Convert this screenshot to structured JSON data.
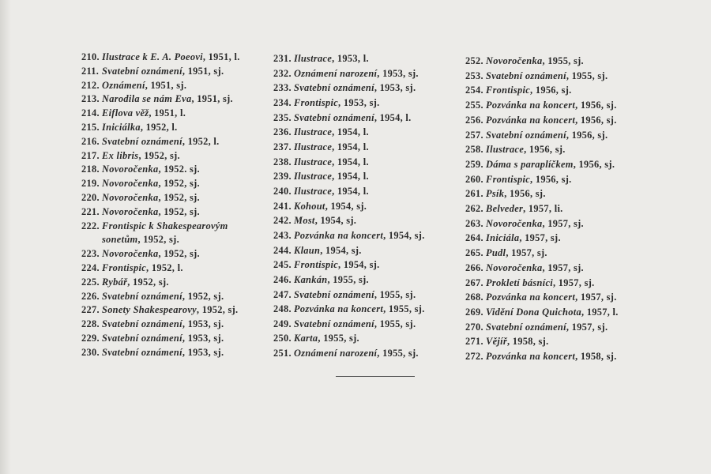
{
  "columns": [
    [
      {
        "num": "210.",
        "title": "Ilustrace k E. A. Poeovi",
        "rest": ", 1951, l."
      },
      {
        "num": "211.",
        "title": "Svatební oznámení",
        "rest": ", 1951, sj."
      },
      {
        "num": "212.",
        "title": "Oznámení",
        "rest": ", 1951, sj."
      },
      {
        "num": "213.",
        "title": "Narodila se nám Eva",
        "rest": ", 1951, sj."
      },
      {
        "num": "214.",
        "title": "Eiflova věž",
        "rest": ", 1951, l."
      },
      {
        "num": "215.",
        "title": "Iniciálka",
        "rest": ", 1952, l."
      },
      {
        "num": "216.",
        "title": "Svatební oznámení",
        "rest": ", 1952, l."
      },
      {
        "num": "217.",
        "title": "Ex libris",
        "rest": ", 1952, sj."
      },
      {
        "num": "218.",
        "title": "Novoročenka",
        "rest": ", 1952. sj."
      },
      {
        "num": "219.",
        "title": "Novoročenka",
        "rest": ", 1952, sj."
      },
      {
        "num": "220.",
        "title": "Novoročenka",
        "rest": ", 1952, sj."
      },
      {
        "num": "221.",
        "title": "Novoročenka",
        "rest": ", 1952, sj."
      },
      {
        "num": "222.",
        "title": "Frontispic k Shakespearovým sonetům",
        "rest": ", 1952, sj."
      },
      {
        "num": "223.",
        "title": "Novoročenka",
        "rest": ", 1952, sj."
      },
      {
        "num": "224.",
        "title": "Frontispic",
        "rest": ", 1952, l."
      },
      {
        "num": "225.",
        "title": "Rybář",
        "rest": ", 1952, sj."
      },
      {
        "num": "226.",
        "title": "Svatební oznámení",
        "rest": ", 1952, sj."
      },
      {
        "num": "227.",
        "title": "Sonety Shakespearovy",
        "rest": ", 1952, sj."
      },
      {
        "num": "228.",
        "title": "Svatební oznámení",
        "rest": ", 1953, sj."
      },
      {
        "num": "229.",
        "title": "Svatební oznámení",
        "rest": ", 1953, sj."
      },
      {
        "num": "230.",
        "title": "Svatební oznámení",
        "rest": ", 1953, sj."
      }
    ],
    [
      {
        "num": "231.",
        "title": "Ilustrace",
        "rest": ", 1953, l."
      },
      {
        "num": "232.",
        "title": "Oznámení narození",
        "rest": ", 1953, sj."
      },
      {
        "num": "233.",
        "title": "Svatební oznámení",
        "rest": ", 1953, sj."
      },
      {
        "num": "234.",
        "title": "Frontispic",
        "rest": ", 1953, sj."
      },
      {
        "num": "235.",
        "title": "Svatební oznámení",
        "rest": ", 1954, l."
      },
      {
        "num": "236.",
        "title": "Ilustrace",
        "rest": ", 1954, l."
      },
      {
        "num": "237.",
        "title": "Ilustrace",
        "rest": ", 1954, l."
      },
      {
        "num": "238.",
        "title": "Ilustrace",
        "rest": ", 1954, l."
      },
      {
        "num": "239.",
        "title": "Ilustrace",
        "rest": ", 1954, l."
      },
      {
        "num": "240.",
        "title": "Ilustrace",
        "rest": ", 1954, l."
      },
      {
        "num": "241.",
        "title": "Kohout",
        "rest": ", 1954, sj."
      },
      {
        "num": "242.",
        "title": "Most",
        "rest": ", 1954, sj."
      },
      {
        "num": "243.",
        "title": "Pozvánka na koncert",
        "rest": ", 1954, sj."
      },
      {
        "num": "244.",
        "title": "Klaun",
        "rest": ", 1954, sj."
      },
      {
        "num": "245.",
        "title": "Frontispic",
        "rest": ", 1954, sj."
      },
      {
        "num": "246.",
        "title": "Kankán",
        "rest": ", 1955, sj."
      },
      {
        "num": "247.",
        "title": "Svatební oznámení",
        "rest": ", 1955, sj."
      },
      {
        "num": "248.",
        "title": "Pozvánka na koncert",
        "rest": ", 1955, sj."
      },
      {
        "num": "249.",
        "title": "Svatební oznámení",
        "rest": ", 1955, sj."
      },
      {
        "num": "250.",
        "title": "Karta",
        "rest": ", 1955, sj."
      },
      {
        "num": "251.",
        "title": "Oznámení narození",
        "rest": ", 1955, sj."
      }
    ],
    [
      {
        "num": "252.",
        "title": "Novoročenka",
        "rest": ", 1955, sj."
      },
      {
        "num": "253.",
        "title": "Svatební oznámení",
        "rest": ", 1955, sj."
      },
      {
        "num": "254.",
        "title": "Frontispic",
        "rest": ", 1956, sj."
      },
      {
        "num": "255.",
        "title": "Pozvánka na koncert",
        "rest": ", 1956, sj."
      },
      {
        "num": "256.",
        "title": "Pozvánka na koncert",
        "rest": ", 1956, sj."
      },
      {
        "num": "257.",
        "title": "Svatební oznámení",
        "rest": ", 1956, sj."
      },
      {
        "num": "258.",
        "title": "Ilustrace",
        "rest": ", 1956, sj."
      },
      {
        "num": "259.",
        "title": "Dáma s paraplíčkem",
        "rest": ", 1956, sj."
      },
      {
        "num": "260.",
        "title": "Frontispic",
        "rest": ", 1956, sj."
      },
      {
        "num": "261.",
        "title": "Psík",
        "rest": ", 1956, sj."
      },
      {
        "num": "262.",
        "title": "Belveder",
        "rest": ", 1957, li."
      },
      {
        "num": "263.",
        "title": "Novoročenka",
        "rest": ", 1957, sj."
      },
      {
        "num": "264.",
        "title": "Iniciála",
        "rest": ", 1957, sj."
      },
      {
        "num": "265.",
        "title": "Pudl",
        "rest": ", 1957, sj."
      },
      {
        "num": "266.",
        "title": "Novoročenka",
        "rest": ", 1957, sj."
      },
      {
        "num": "267.",
        "title": "Prokletí básníci",
        "rest": ", 1957, sj."
      },
      {
        "num": "268.",
        "title": "Pozvánka na koncert",
        "rest": ", 1957, sj."
      },
      {
        "num": "269.",
        "title": "Vidění Dona Quichota",
        "rest": ", 1957, l."
      },
      {
        "num": "270.",
        "title": "Svatební oznámení",
        "rest": ", 1957, sj."
      },
      {
        "num": "271.",
        "title": "Vějíř",
        "rest": ", 1958, sj."
      },
      {
        "num": "272.",
        "title": "Pozvánka na koncert",
        "rest": ", 1958, sj."
      }
    ]
  ]
}
